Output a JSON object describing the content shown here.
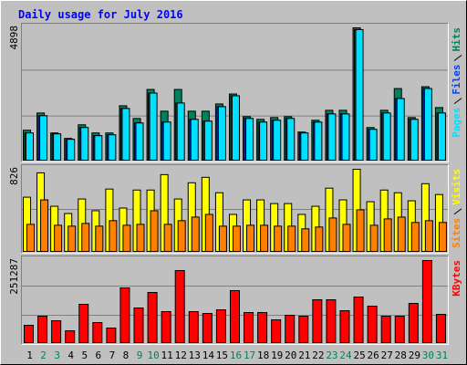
{
  "chart_data": [
    {
      "type": "bar",
      "title": "Daily usage for July 2016",
      "ylim": [
        0,
        4898
      ],
      "yticks": [
        4898
      ],
      "series": [
        {
          "name": "Hits",
          "color": "#00805c",
          "values": [
            1107,
            1745,
            1007,
            805,
            1308,
            1007,
            1007,
            2013,
            1543,
            2617,
            1812,
            2617,
            1812,
            1812,
            2080,
            2449,
            1610,
            1510,
            1577,
            1610,
            1040,
            1476,
            1845,
            1845,
            4898,
            1208,
            1845,
            2650,
            1577,
            2718,
            1946
          ]
        },
        {
          "name": "Files",
          "color": "#0040ff",
          "values": [
            1007,
            1644,
            973,
            772,
            1208,
            906,
            939,
            1912,
            1376,
            2483,
            1409,
            2114,
            1510,
            1443,
            1980,
            2382,
            1543,
            1409,
            1476,
            1543,
            1007,
            1409,
            1711,
            1711,
            4831,
            1141,
            1745,
            2281,
            1510,
            2651,
            1745
          ]
        },
        {
          "name": "Pages",
          "color": "#00e0ff",
          "values": [
            1007,
            1644,
            973,
            772,
            1208,
            906,
            939,
            1912,
            1376,
            2483,
            1409,
            2114,
            1510,
            1443,
            1980,
            2382,
            1543,
            1409,
            1476,
            1543,
            1007,
            1409,
            1711,
            1711,
            4831,
            1141,
            1745,
            2281,
            1510,
            2651,
            1745
          ]
        }
      ]
    },
    {
      "type": "bar",
      "ylim": [
        0,
        826
      ],
      "yticks": [
        826
      ],
      "series": [
        {
          "name": "Visits",
          "color": "#ffff00",
          "values": [
            545,
            790,
            454,
            381,
            527,
            409,
            627,
            436,
            617,
            617,
            772,
            527,
            690,
            745,
            590,
            372,
            518,
            518,
            481,
            481,
            372,
            454,
            636,
            518,
            826,
            500,
            617,
            590,
            509,
            681,
            572
          ]
        },
        {
          "name": "Sites",
          "color": "#ff8000",
          "values": [
            272,
            518,
            263,
            254,
            281,
            254,
            309,
            263,
            272,
            409,
            272,
            309,
            345,
            372,
            254,
            254,
            263,
            263,
            254,
            254,
            227,
            245,
            336,
            272,
            418,
            263,
            327,
            345,
            291,
            309,
            291
          ]
        }
      ]
    },
    {
      "type": "bar",
      "ylim": [
        0,
        251287
      ],
      "yticks": [
        251287
      ],
      "categories": [
        "1",
        "2",
        "3",
        "4",
        "5",
        "6",
        "7",
        "8",
        "9",
        "10",
        "11",
        "12",
        "13",
        "14",
        "15",
        "16",
        "17",
        "18",
        "19",
        "20",
        "21",
        "22",
        "23",
        "24",
        "25",
        "26",
        "27",
        "28",
        "29",
        "30",
        "31"
      ],
      "category_colors": [
        "#000000",
        "#00805c",
        "#00805c",
        "#000000",
        "#000000",
        "#000000",
        "#000000",
        "#000000",
        "#00805c",
        "#00805c",
        "#000000",
        "#000000",
        "#000000",
        "#000000",
        "#000000",
        "#00805c",
        "#00805c",
        "#000000",
        "#000000",
        "#000000",
        "#000000",
        "#000000",
        "#00805c",
        "#00805c",
        "#000000",
        "#000000",
        "#000000",
        "#000000",
        "#000000",
        "#00805c",
        "#00805c"
      ],
      "series": [
        {
          "name": "KBytes",
          "color": "#ff0000",
          "values": [
            53050,
            80970,
            67010,
            36300,
            117260,
            61420,
            44670,
            167520,
            106100,
            153560,
            94930,
            220570,
            94930,
            89340,
            100510,
            159140,
            92140,
            92140,
            69800,
            83760,
            80970,
            131220,
            131220,
            97720,
            139600,
            111680,
            80970,
            80970,
            120060,
            251287,
            86550
          ]
        }
      ]
    }
  ]
}
